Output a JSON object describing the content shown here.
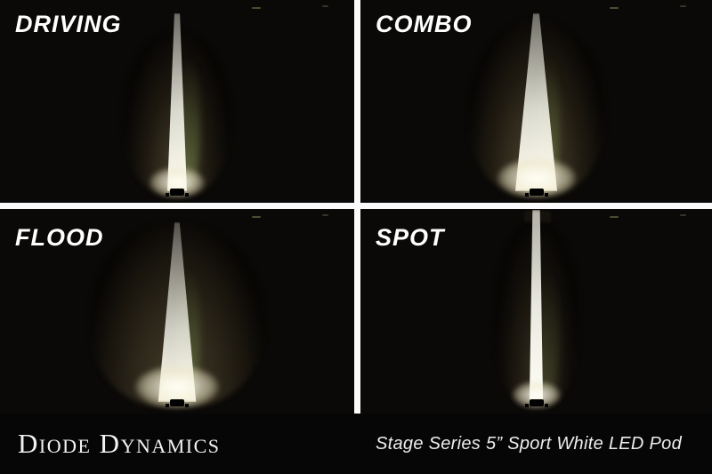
{
  "quadrants": [
    {
      "id": "driving",
      "label": "DRIVING"
    },
    {
      "id": "combo",
      "label": "COMBO"
    },
    {
      "id": "flood",
      "label": "FLOOD"
    },
    {
      "id": "spot",
      "label": "SPOT"
    }
  ],
  "footer": {
    "brand": "Diode Dynamics",
    "product": "Stage Series 5” Sport White LED Pod"
  },
  "colors": {
    "background": "#000000",
    "divider": "#fbfbfb",
    "beam_core": "#fffdf0",
    "beam_spill": "#c1ac76",
    "grass_edge": "#8ea060",
    "text": "#ffffff"
  }
}
